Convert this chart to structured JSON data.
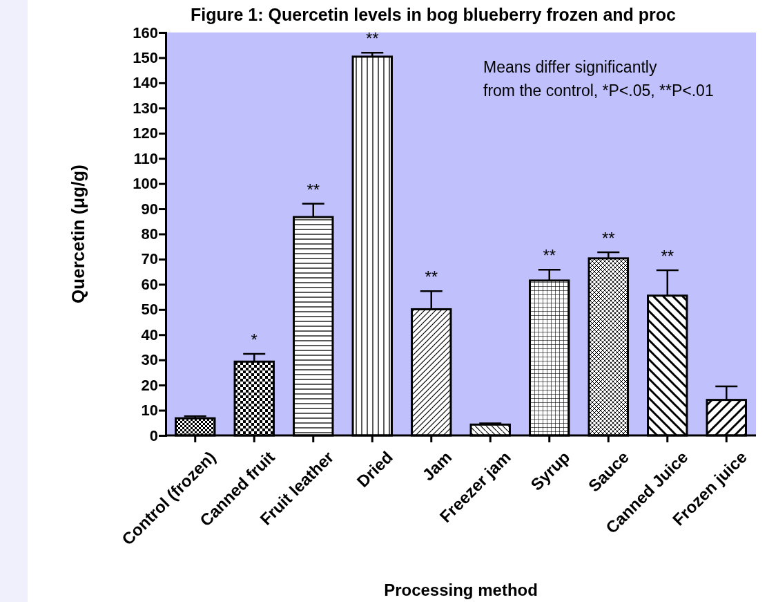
{
  "chart_data": {
    "type": "bar",
    "title": "Figure 1: Quercetin levels in bog blueberry frozen and proc",
    "xlabel": "Processing method",
    "ylabel": "Quercetin (μg/g)",
    "categories": [
      "Control (frozen)",
      "Canned fruit",
      "Fruit leather",
      "Dried",
      "Jam",
      "Freezer jam",
      "Syrup",
      "Sauce",
      "Canned Juice",
      "Frozen juice"
    ],
    "values": [
      6.8,
      29.3,
      86.7,
      150.4,
      50.1,
      4.3,
      61.5,
      70.3,
      55.5,
      14.1
    ],
    "errors": [
      0.8,
      3.1,
      5.3,
      1.6,
      7.2,
      0.5,
      4.3,
      2.4,
      10.1,
      5.4
    ],
    "color": "#000000",
    "ylim": [
      0,
      160
    ],
    "yticks": [
      0,
      10,
      20,
      30,
      40,
      50,
      60,
      70,
      80,
      90,
      100,
      110,
      120,
      130,
      140,
      150,
      160
    ],
    "grid": false,
    "annotations": [
      {
        "text": "*",
        "x": "Canned fruit",
        "y": 29.3
      },
      {
        "text": "**",
        "x": "Fruit leather",
        "y": 86.7
      },
      {
        "text": "**",
        "x": "Dried",
        "y": 150.4
      },
      {
        "text": "**",
        "x": "Jam",
        "y": 50.1
      },
      {
        "text": "**",
        "x": "Syrup",
        "y": 61.5
      },
      {
        "text": "**",
        "x": "Sauce",
        "y": 70.3
      },
      {
        "text": "**",
        "x": "Canned Juice",
        "y": 55.5
      },
      "Means differ significantly\nfrom the control, *P<.05, **P<.01"
    ]
  }
}
